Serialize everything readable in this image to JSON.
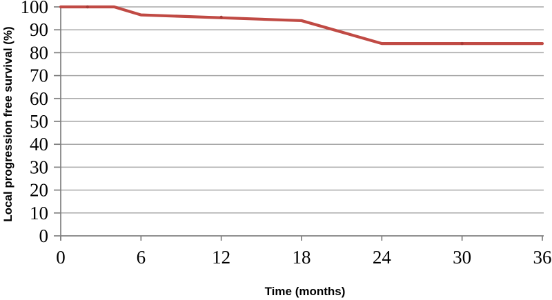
{
  "chart_data": {
    "type": "line",
    "title": "",
    "xlabel": "Time (months)",
    "ylabel": "Local progression free survival (%)",
    "xlim": [
      0,
      36
    ],
    "ylim": [
      0,
      100
    ],
    "xticks": [
      0,
      6,
      12,
      18,
      24,
      30,
      36
    ],
    "yticks": [
      0,
      10,
      20,
      30,
      40,
      50,
      60,
      70,
      80,
      90,
      100
    ],
    "grid": "horizontal",
    "legend": "none",
    "series": [
      {
        "name": "Local progression free survival",
        "x": [
          0,
          4,
          6,
          18,
          24,
          36
        ],
        "y": [
          100,
          100,
          96.5,
          94,
          84,
          84
        ],
        "color": "#c04a44"
      }
    ],
    "censor_markers": [
      {
        "x": 2,
        "y": 100
      },
      {
        "x": 12,
        "y": 95.5
      },
      {
        "x": 30,
        "y": 84
      }
    ],
    "colors": {
      "line": "#c04a44",
      "marker": "#a83b36",
      "grid": "#a7a7a7",
      "axis": "#7f7f7f",
      "text": "#000000"
    }
  }
}
